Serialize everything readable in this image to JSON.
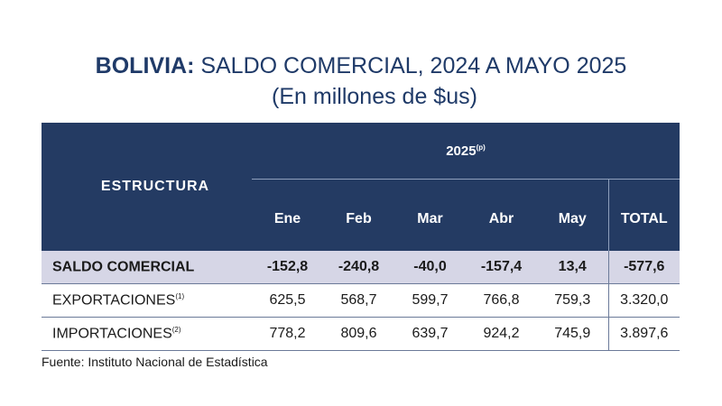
{
  "title_bold": "BOLIVIA:",
  "title_rest": " SALDO COMERCIAL, 2024 A MAYO 2025",
  "subtitle": "(En millones de $us)",
  "table": {
    "structure_header": "ESTRUCTURA",
    "year_label": "2025",
    "year_note": "(p)",
    "columns": [
      "Ene",
      "Feb",
      "Mar",
      "Abr",
      "May",
      "TOTAL"
    ],
    "rows": [
      {
        "label": "SALDO COMERCIAL",
        "note": "",
        "values": [
          "-152,8",
          "-240,8",
          "-40,0",
          "-157,4",
          "13,4",
          "-577,6"
        ]
      },
      {
        "label": "EXPORTACIONES",
        "note": "(1)",
        "values": [
          "625,5",
          "568,7",
          "599,7",
          "766,8",
          "759,3",
          "3.320,0"
        ]
      },
      {
        "label": "IMPORTACIONES",
        "note": "(2)",
        "values": [
          "778,2",
          "809,6",
          "639,7",
          "924,2",
          "745,9",
          "3.897,6"
        ]
      }
    ]
  },
  "source": "Fuente: Instituto Nacional de Estadística",
  "colors": {
    "header_bg": "#243b63",
    "title_color": "#1f3a68",
    "highlight_row": "#d6d6e6"
  }
}
